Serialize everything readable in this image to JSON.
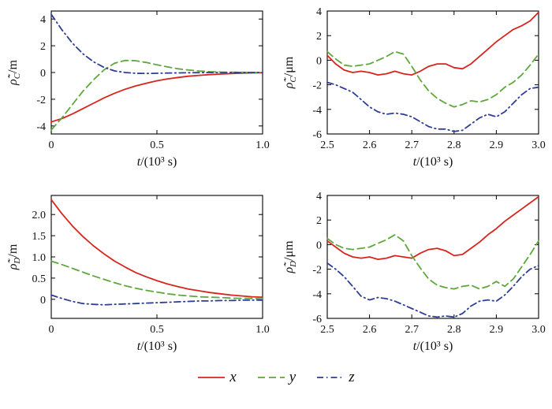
{
  "figure": {
    "background": "#ffffff"
  },
  "colors": {
    "x": "#d7251d",
    "y": "#5ea73c",
    "z": "#2e3d96",
    "axis": "#000000"
  },
  "legend": {
    "position": "bottom-center",
    "items": [
      {
        "label": "x",
        "color": "#d7251d",
        "style": "solid"
      },
      {
        "label": "y",
        "color": "#5ea73c",
        "style": "dashed"
      },
      {
        "label": "z",
        "color": "#2e3d96",
        "style": "dashdot"
      }
    ]
  },
  "chart_data": [
    {
      "type": "line",
      "title": "",
      "xlabel": "t/(10³ s)",
      "ylabel": {
        "symbol": "ρ̃̇",
        "sub": "C",
        "unit": "/m"
      },
      "xlim": [
        0,
        1.0
      ],
      "ylim": [
        -4.6,
        4.6
      ],
      "xticks": [
        0,
        0.5,
        1.0
      ],
      "xtick_labels": [
        "0",
        "0.5",
        "1.0"
      ],
      "yticks": [
        -4,
        -2,
        0,
        2,
        4
      ],
      "ytick_labels": [
        "-4",
        "-2",
        "0",
        "2",
        "4"
      ],
      "grid": false,
      "series": [
        {
          "name": "x",
          "color": "#d7251d",
          "style": "solid",
          "x": [
            0,
            0.05,
            0.1,
            0.15,
            0.2,
            0.25,
            0.3,
            0.35,
            0.4,
            0.45,
            0.5,
            0.55,
            0.6,
            0.65,
            0.7,
            0.75,
            0.8,
            0.85,
            0.9,
            0.95,
            1.0
          ],
          "y": [
            -3.7,
            -3.45,
            -3.1,
            -2.7,
            -2.3,
            -1.9,
            -1.55,
            -1.25,
            -1.0,
            -0.8,
            -0.62,
            -0.48,
            -0.37,
            -0.28,
            -0.21,
            -0.16,
            -0.12,
            -0.08,
            -0.05,
            -0.03,
            -0.02
          ]
        },
        {
          "name": "y",
          "color": "#5ea73c",
          "style": "dashed",
          "x": [
            0,
            0.05,
            0.1,
            0.15,
            0.2,
            0.25,
            0.3,
            0.35,
            0.4,
            0.45,
            0.5,
            0.55,
            0.6,
            0.65,
            0.7,
            0.75,
            0.8,
            0.85,
            0.9,
            0.95,
            1.0
          ],
          "y": [
            -4.3,
            -3.4,
            -2.4,
            -1.4,
            -0.55,
            0.2,
            0.7,
            0.9,
            0.88,
            0.75,
            0.58,
            0.42,
            0.28,
            0.18,
            0.11,
            0.06,
            0.03,
            0.02,
            0.01,
            0,
            0
          ]
        },
        {
          "name": "z",
          "color": "#2e3d96",
          "style": "dashdot",
          "x": [
            0,
            0.05,
            0.1,
            0.15,
            0.2,
            0.25,
            0.3,
            0.35,
            0.4,
            0.45,
            0.5,
            0.55,
            0.6,
            0.65,
            0.7,
            0.75,
            0.8,
            0.85,
            0.9,
            0.95,
            1.0
          ],
          "y": [
            4.35,
            3.2,
            2.2,
            1.4,
            0.8,
            0.38,
            0.12,
            0,
            -0.06,
            -0.07,
            -0.06,
            -0.04,
            -0.03,
            -0.02,
            -0.01,
            0,
            0,
            0,
            0,
            0,
            0
          ]
        }
      ]
    },
    {
      "type": "line",
      "title": "",
      "xlabel": "t/(10³ s)",
      "ylabel": {
        "symbol": "ρ̃̇",
        "sub": "C",
        "unit": "/μm"
      },
      "xlim": [
        2.5,
        3.0
      ],
      "ylim": [
        -6,
        4
      ],
      "xticks": [
        2.5,
        2.6,
        2.7,
        2.8,
        2.9,
        3.0
      ],
      "xtick_labels": [
        "2.5",
        "2.6",
        "2.7",
        "2.8",
        "2.9",
        "3.0"
      ],
      "yticks": [
        -6,
        -4,
        -2,
        0,
        2,
        4
      ],
      "ytick_labels": [
        "-6",
        "-4",
        "-2",
        "0",
        "2",
        "4"
      ],
      "grid": false,
      "series": [
        {
          "name": "x",
          "color": "#d7251d",
          "style": "solid",
          "x": [
            2.5,
            2.52,
            2.54,
            2.56,
            2.58,
            2.6,
            2.62,
            2.64,
            2.66,
            2.68,
            2.7,
            2.72,
            2.74,
            2.76,
            2.78,
            2.8,
            2.82,
            2.84,
            2.86,
            2.88,
            2.9,
            2.92,
            2.94,
            2.96,
            2.98,
            3.0
          ],
          "y": [
            0.4,
            -0.3,
            -0.8,
            -1.0,
            -0.9,
            -1.0,
            -1.2,
            -1.1,
            -0.9,
            -1.1,
            -1.2,
            -0.9,
            -0.5,
            -0.3,
            -0.3,
            -0.6,
            -0.7,
            -0.3,
            0.3,
            0.9,
            1.5,
            2.0,
            2.5,
            2.8,
            3.2,
            3.9
          ]
        },
        {
          "name": "y",
          "color": "#5ea73c",
          "style": "dashed",
          "x": [
            2.5,
            2.52,
            2.54,
            2.56,
            2.58,
            2.6,
            2.62,
            2.64,
            2.66,
            2.68,
            2.7,
            2.72,
            2.74,
            2.76,
            2.78,
            2.8,
            2.82,
            2.84,
            2.86,
            2.88,
            2.9,
            2.92,
            2.94,
            2.96,
            2.98,
            3.0
          ],
          "y": [
            0.7,
            0.1,
            -0.4,
            -0.5,
            -0.4,
            -0.3,
            0.0,
            0.3,
            0.7,
            0.5,
            -0.5,
            -1.6,
            -2.5,
            -3.1,
            -3.5,
            -3.8,
            -3.6,
            -3.3,
            -3.4,
            -3.2,
            -2.8,
            -2.2,
            -1.8,
            -1.2,
            -0.4,
            0.5
          ]
        },
        {
          "name": "z",
          "color": "#2e3d96",
          "style": "dashdot",
          "x": [
            2.5,
            2.52,
            2.54,
            2.56,
            2.58,
            2.6,
            2.62,
            2.64,
            2.66,
            2.68,
            2.7,
            2.72,
            2.74,
            2.76,
            2.78,
            2.8,
            2.82,
            2.84,
            2.86,
            2.88,
            2.9,
            2.92,
            2.94,
            2.96,
            2.98,
            3.0
          ],
          "y": [
            -1.8,
            -2.0,
            -2.3,
            -2.6,
            -3.2,
            -3.8,
            -4.2,
            -4.4,
            -4.3,
            -4.4,
            -4.6,
            -5.0,
            -5.4,
            -5.6,
            -5.6,
            -5.8,
            -5.7,
            -5.2,
            -4.7,
            -4.4,
            -4.6,
            -4.2,
            -3.5,
            -2.8,
            -2.3,
            -2.2
          ]
        }
      ]
    },
    {
      "type": "line",
      "title": "",
      "xlabel": "t/(10³ s)",
      "ylabel": {
        "symbol": "ρ̃̇",
        "sub": "D",
        "unit": "/m"
      },
      "xlim": [
        0,
        1.0
      ],
      "ylim": [
        -0.45,
        2.45
      ],
      "xticks": [
        0,
        0.5,
        1.0
      ],
      "xtick_labels": [
        "0",
        "0.5",
        "1.0"
      ],
      "yticks": [
        0,
        0.5,
        1.0,
        1.5,
        2.0
      ],
      "ytick_labels": [
        "0",
        "0.5",
        "1.0",
        "1.5",
        "2.0"
      ],
      "grid": false,
      "series": [
        {
          "name": "x",
          "color": "#d7251d",
          "style": "solid",
          "x": [
            0,
            0.05,
            0.1,
            0.15,
            0.2,
            0.25,
            0.3,
            0.35,
            0.4,
            0.45,
            0.5,
            0.55,
            0.6,
            0.65,
            0.7,
            0.75,
            0.8,
            0.85,
            0.9,
            0.95,
            1.0
          ],
          "y": [
            2.35,
            2.02,
            1.73,
            1.48,
            1.26,
            1.07,
            0.9,
            0.76,
            0.63,
            0.53,
            0.44,
            0.36,
            0.3,
            0.24,
            0.2,
            0.16,
            0.13,
            0.1,
            0.08,
            0.06,
            0.05
          ]
        },
        {
          "name": "y",
          "color": "#5ea73c",
          "style": "dashed",
          "x": [
            0,
            0.05,
            0.1,
            0.15,
            0.2,
            0.25,
            0.3,
            0.35,
            0.4,
            0.45,
            0.5,
            0.55,
            0.6,
            0.65,
            0.7,
            0.75,
            0.8,
            0.85,
            0.9,
            0.95,
            1.0
          ],
          "y": [
            0.9,
            0.82,
            0.73,
            0.64,
            0.55,
            0.47,
            0.39,
            0.32,
            0.26,
            0.21,
            0.17,
            0.13,
            0.1,
            0.08,
            0.06,
            0.05,
            0.04,
            0.03,
            0.02,
            0.02,
            0.01
          ]
        },
        {
          "name": "z",
          "color": "#2e3d96",
          "style": "dashdot",
          "x": [
            0,
            0.05,
            0.1,
            0.15,
            0.2,
            0.25,
            0.3,
            0.35,
            0.4,
            0.45,
            0.5,
            0.55,
            0.6,
            0.65,
            0.7,
            0.75,
            0.8,
            0.85,
            0.9,
            0.95,
            1.0
          ],
          "y": [
            0.1,
            0.02,
            -0.05,
            -0.1,
            -0.12,
            -0.13,
            -0.12,
            -0.11,
            -0.1,
            -0.09,
            -0.08,
            -0.07,
            -0.06,
            -0.05,
            -0.04,
            -0.04,
            -0.03,
            -0.03,
            -0.02,
            -0.02,
            -0.02
          ]
        }
      ]
    },
    {
      "type": "line",
      "title": "",
      "xlabel": "t/(10³ s)",
      "ylabel": {
        "symbol": "ρ̃̇",
        "sub": "D",
        "unit": "/μm"
      },
      "xlim": [
        2.5,
        3.0
      ],
      "ylim": [
        -6,
        4
      ],
      "xticks": [
        2.5,
        2.6,
        2.7,
        2.8,
        2.9,
        3.0
      ],
      "xtick_labels": [
        "2.5",
        "2.6",
        "2.7",
        "2.8",
        "2.9",
        "3.0"
      ],
      "yticks": [
        -6,
        -4,
        -2,
        0,
        2,
        4
      ],
      "ytick_labels": [
        "-6",
        "-4",
        "-2",
        "0",
        "2",
        "4"
      ],
      "grid": false,
      "series": [
        {
          "name": "x",
          "color": "#d7251d",
          "style": "solid",
          "x": [
            2.5,
            2.52,
            2.54,
            2.56,
            2.58,
            2.6,
            2.62,
            2.64,
            2.66,
            2.68,
            2.7,
            2.72,
            2.74,
            2.76,
            2.78,
            2.8,
            2.82,
            2.84,
            2.86,
            2.88,
            2.9,
            2.92,
            2.94,
            2.96,
            2.98,
            3.0
          ],
          "y": [
            0.3,
            -0.2,
            -0.7,
            -1.0,
            -1.1,
            -1.0,
            -1.2,
            -1.1,
            -0.9,
            -1.0,
            -1.1,
            -0.7,
            -0.4,
            -0.3,
            -0.5,
            -0.9,
            -0.8,
            -0.3,
            0.2,
            0.8,
            1.3,
            1.9,
            2.4,
            2.9,
            3.4,
            3.9
          ]
        },
        {
          "name": "y",
          "color": "#5ea73c",
          "style": "dashed",
          "x": [
            2.5,
            2.52,
            2.54,
            2.56,
            2.58,
            2.6,
            2.62,
            2.64,
            2.66,
            2.68,
            2.7,
            2.72,
            2.74,
            2.76,
            2.78,
            2.8,
            2.82,
            2.84,
            2.86,
            2.88,
            2.9,
            2.92,
            2.94,
            2.96,
            2.98,
            3.0
          ],
          "y": [
            0.5,
            0.0,
            -0.3,
            -0.4,
            -0.3,
            -0.2,
            0.1,
            0.4,
            0.8,
            0.3,
            -0.9,
            -1.9,
            -2.8,
            -3.3,
            -3.5,
            -3.6,
            -3.4,
            -3.3,
            -3.6,
            -3.4,
            -3.0,
            -3.4,
            -2.8,
            -1.8,
            -0.8,
            0.3
          ]
        },
        {
          "name": "z",
          "color": "#2e3d96",
          "style": "dashdot",
          "x": [
            2.5,
            2.52,
            2.54,
            2.56,
            2.58,
            2.6,
            2.62,
            2.64,
            2.66,
            2.68,
            2.7,
            2.72,
            2.74,
            2.76,
            2.78,
            2.8,
            2.82,
            2.84,
            2.86,
            2.88,
            2.9,
            2.92,
            2.94,
            2.96,
            2.98,
            3.0
          ],
          "y": [
            -1.5,
            -2.0,
            -2.6,
            -3.4,
            -4.2,
            -4.5,
            -4.3,
            -4.4,
            -4.6,
            -4.9,
            -5.2,
            -5.5,
            -5.8,
            -5.9,
            -5.8,
            -5.9,
            -5.6,
            -5.0,
            -4.6,
            -4.5,
            -4.6,
            -4.1,
            -3.4,
            -2.6,
            -2.0,
            -1.7
          ]
        }
      ]
    }
  ]
}
